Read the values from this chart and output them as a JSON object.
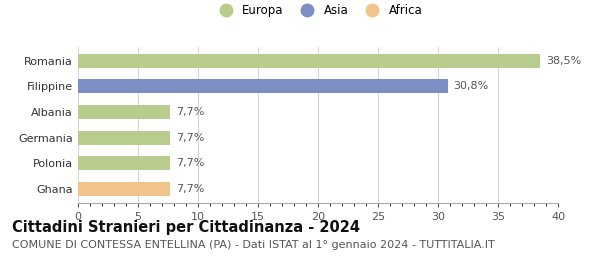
{
  "title": "Cittadini Stranieri per Cittadinanza - 2024",
  "subtitle": "COMUNE DI CONTESSA ENTELLINA (PA) - Dati ISTAT al 1° gennaio 2024 - TUTTITALIA.IT",
  "categories": [
    "Ghana",
    "Polonia",
    "Germania",
    "Albania",
    "Filippine",
    "Romania"
  ],
  "values": [
    7.7,
    7.7,
    7.7,
    7.7,
    30.8,
    38.5
  ],
  "labels": [
    "7,7%",
    "7,7%",
    "7,7%",
    "7,7%",
    "30,8%",
    "38,5%"
  ],
  "colors": [
    "#f0c48a",
    "#b8cc8e",
    "#b8cc8e",
    "#b8cc8e",
    "#7b8fc4",
    "#b8cc8e"
  ],
  "legend": [
    {
      "label": "Europa",
      "color": "#b8cc8e"
    },
    {
      "label": "Asia",
      "color": "#7b8fc4"
    },
    {
      "label": "Africa",
      "color": "#f0c48a"
    }
  ],
  "xlim": [
    0,
    40
  ],
  "xticks": [
    0,
    5,
    10,
    15,
    20,
    25,
    30,
    35,
    40
  ],
  "background_color": "#ffffff",
  "bar_height": 0.55,
  "title_fontsize": 10.5,
  "subtitle_fontsize": 8,
  "label_fontsize": 8,
  "tick_fontsize": 8,
  "legend_fontsize": 8.5
}
